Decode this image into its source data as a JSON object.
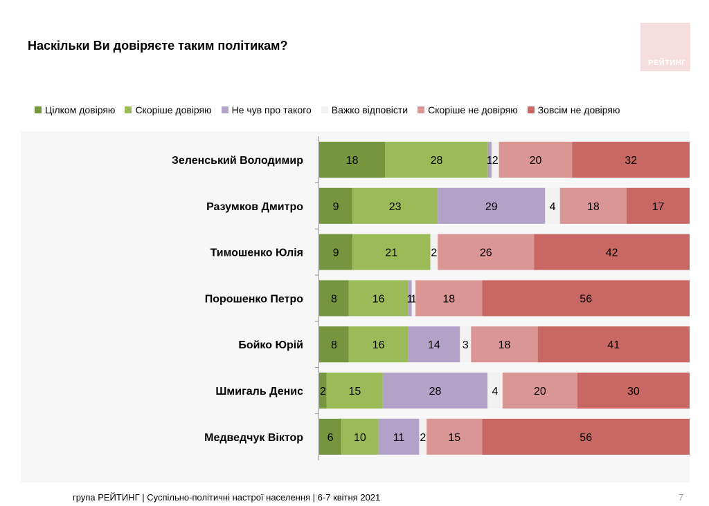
{
  "title": "Наскільки Ви довіряєте таким політикам?",
  "logo_text": "РЕЙТИНГ",
  "footer": "група РЕЙТИНГ | Суспільно-політичні настрої населення | 6-7 квітня 2021",
  "page_number": "7",
  "chart_data": {
    "type": "bar",
    "orientation": "horizontal",
    "stacked": true,
    "normalized_to_100": true,
    "legend_position": "top",
    "categories": [
      "Зеленський Володимир",
      "Разумков Дмитро",
      "Тимошенко Юлія",
      "Порошенко Петро",
      "Бойко Юрій",
      "Шмигаль Денис",
      "Медведчук Віктор"
    ],
    "series": [
      {
        "name": "Цілком довіряю",
        "color": "#76953f",
        "values": [
          18,
          9,
          9,
          8,
          8,
          2,
          6
        ]
      },
      {
        "name": "Скоріше довіряю",
        "color": "#9bbb59",
        "values": [
          28,
          23,
          21,
          16,
          16,
          15,
          10
        ]
      },
      {
        "name": "Не чув про такого",
        "color": "#b3a2c7",
        "values": [
          1,
          29,
          0,
          1,
          14,
          28,
          11
        ]
      },
      {
        "name": "Важко відповісти",
        "color": "#f2f2f2",
        "values": [
          2,
          4,
          2,
          1,
          3,
          4,
          2
        ]
      },
      {
        "name": "Скоріше не довіряю",
        "color": "#da9694",
        "values": [
          20,
          18,
          26,
          18,
          18,
          20,
          15
        ]
      },
      {
        "name": "Зовсім не довіряю",
        "color": "#c86764",
        "values": [
          32,
          17,
          42,
          56,
          41,
          30,
          56
        ]
      }
    ]
  }
}
